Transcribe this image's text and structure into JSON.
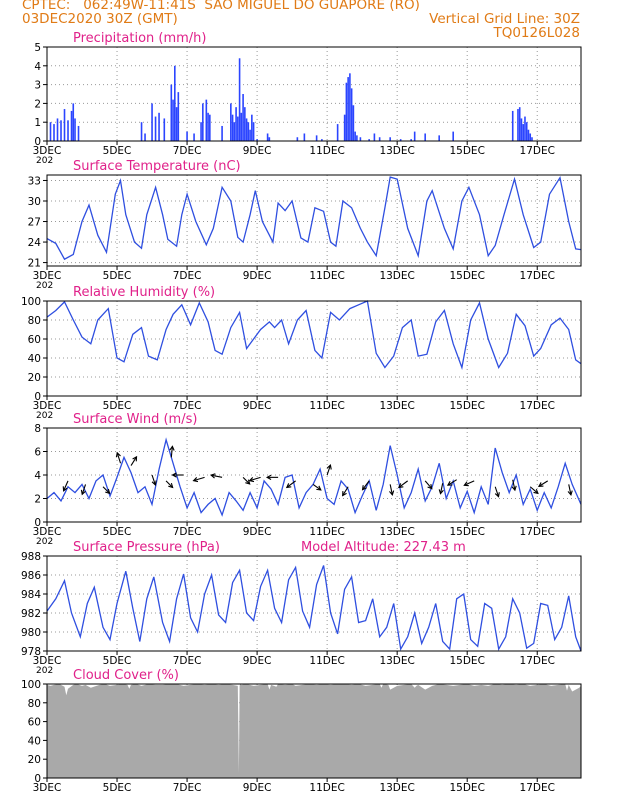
{
  "header": {
    "line1": "CPTEC:   062:49W-11:41S  SAO MIGUEL DO GUAPORE (RO)",
    "line2_left": "03DEC2020 30Z (GMT)",
    "line2_right": "Vertical Grid Line: 30Z",
    "line3_right": "TQ0126L028"
  },
  "colors": {
    "title": "#e0218a",
    "line": "#2f4fe0",
    "bars": "#2b45ff",
    "cloud": "#a9a9a9",
    "header": "#e07b16",
    "arrow": "#000000"
  },
  "x_axis": {
    "domain_days": [
      3.0,
      18.25
    ],
    "ticks": [
      {
        "d": 3,
        "label": "3DEC"
      },
      {
        "d": 5,
        "label": "5DEC"
      },
      {
        "d": 7,
        "label": "7DEC"
      },
      {
        "d": 9,
        "label": "9DEC"
      },
      {
        "d": 11,
        "label": "11DEC"
      },
      {
        "d": 13,
        "label": "13DEC"
      },
      {
        "d": 15,
        "label": "15DEC"
      },
      {
        "d": 17,
        "label": "17DEC"
      }
    ],
    "corner_label": "202"
  },
  "chart_data": [
    {
      "id": "precip",
      "type": "bar",
      "title": "Precipitation (mm/h)",
      "ylim": [
        0,
        5
      ],
      "yticks": [
        0,
        1,
        2,
        3,
        4,
        5
      ],
      "x": [
        3.1,
        3.2,
        3.3,
        3.4,
        3.5,
        3.6,
        3.7,
        3.75,
        3.8,
        3.9,
        5.7,
        5.8,
        6.0,
        6.1,
        6.2,
        6.35,
        6.55,
        6.6,
        6.65,
        6.7,
        6.75,
        7.0,
        7.2,
        7.4,
        7.45,
        7.55,
        7.6,
        7.65,
        8.0,
        8.25,
        8.3,
        8.35,
        8.4,
        8.45,
        8.5,
        8.55,
        8.6,
        8.65,
        8.7,
        8.75,
        8.8,
        8.85,
        8.9,
        9.0,
        9.3,
        9.35,
        10.15,
        10.35,
        10.7,
        10.85,
        11.3,
        11.5,
        11.55,
        11.6,
        11.65,
        11.7,
        11.75,
        11.8,
        11.85,
        11.95,
        12.2,
        12.35,
        12.5,
        12.8,
        13.1,
        13.4,
        13.5,
        13.8,
        14.2,
        14.6,
        16.3,
        16.45,
        16.5,
        16.55,
        16.6,
        16.65,
        16.7,
        16.75,
        16.8,
        16.85
      ],
      "values": [
        1.0,
        0.9,
        1.2,
        1.1,
        1.7,
        1.1,
        1.6,
        2.0,
        1.2,
        0.8,
        1.0,
        0.4,
        2.0,
        1.3,
        1.5,
        1.2,
        3.0,
        2.2,
        4.0,
        1.8,
        2.6,
        0.5,
        0.4,
        1.0,
        2.0,
        2.2,
        1.5,
        1.4,
        0.8,
        2.0,
        1.4,
        1.0,
        1.8,
        1.3,
        4.4,
        1.5,
        2.5,
        1.8,
        1.2,
        1.0,
        0.6,
        1.4,
        1.0,
        0.1,
        0.4,
        0.2,
        0.2,
        0.4,
        0.3,
        0.1,
        0.9,
        1.4,
        3.1,
        3.4,
        3.6,
        2.8,
        1.9,
        0.5,
        0.3,
        0.2,
        0.1,
        0.4,
        0.2,
        0.2,
        0.1,
        0.1,
        0.5,
        0.4,
        0.3,
        0.5,
        1.6,
        1.7,
        1.8,
        1.2,
        0.9,
        1.3,
        1.0,
        0.6,
        0.4,
        0.2
      ]
    },
    {
      "id": "temp",
      "type": "line",
      "title": "Surface Temperature (nC)",
      "ylim": [
        20.5,
        33.8
      ],
      "yticks": [
        21,
        24,
        27,
        30,
        33
      ],
      "x": [
        3.0,
        3.25,
        3.5,
        3.75,
        4.0,
        4.2,
        4.45,
        4.7,
        4.95,
        5.1,
        5.25,
        5.5,
        5.7,
        5.85,
        6.1,
        6.3,
        6.45,
        6.7,
        6.85,
        7.0,
        7.25,
        7.55,
        7.75,
        8.0,
        8.25,
        8.45,
        8.6,
        8.8,
        8.95,
        9.15,
        9.45,
        9.6,
        9.8,
        10.0,
        10.25,
        10.45,
        10.65,
        10.9,
        11.1,
        11.25,
        11.45,
        11.7,
        11.95,
        12.15,
        12.4,
        12.65,
        12.8,
        13.0,
        13.3,
        13.6,
        13.85,
        14.0,
        14.35,
        14.6,
        14.85,
        15.05,
        15.35,
        15.6,
        15.8,
        16.05,
        16.35,
        16.6,
        16.9,
        17.1,
        17.35,
        17.65,
        17.9,
        18.1,
        18.25
      ],
      "values": [
        24.5,
        23.8,
        21.5,
        22.2,
        27.0,
        29.4,
        25.0,
        22.5,
        31.0,
        33.0,
        28.0,
        24.0,
        23.1,
        28.0,
        32.0,
        28.0,
        24.4,
        23.4,
        28.0,
        31.0,
        27.0,
        23.6,
        26.0,
        32.0,
        30.0,
        24.7,
        24.0,
        28.0,
        31.5,
        27.0,
        24.0,
        29.7,
        28.6,
        30.0,
        24.6,
        24.0,
        29.0,
        28.5,
        24.0,
        23.4,
        30.0,
        29.0,
        26.0,
        24.0,
        22.0,
        29.0,
        33.5,
        33.2,
        26.0,
        22.0,
        30.0,
        31.5,
        26.0,
        23.0,
        30.0,
        32.0,
        28.0,
        22.0,
        23.5,
        28.0,
        33.2,
        28.0,
        23.2,
        24.0,
        31.0,
        33.4,
        27.0,
        23.0,
        22.9
      ]
    },
    {
      "id": "rh",
      "type": "line",
      "title": "Relative Humidity (%)",
      "ylim": [
        0,
        100
      ],
      "yticks": [
        0,
        20,
        40,
        60,
        80,
        100
      ],
      "x": [
        3.0,
        3.25,
        3.5,
        3.75,
        4.0,
        4.25,
        4.45,
        4.75,
        5.0,
        5.2,
        5.45,
        5.7,
        5.9,
        6.15,
        6.4,
        6.6,
        6.85,
        7.1,
        7.35,
        7.6,
        7.8,
        8.0,
        8.25,
        8.5,
        8.7,
        8.9,
        9.1,
        9.35,
        9.5,
        9.7,
        9.9,
        10.15,
        10.4,
        10.65,
        10.85,
        11.1,
        11.35,
        11.65,
        11.9,
        12.15,
        12.4,
        12.65,
        12.9,
        13.15,
        13.4,
        13.6,
        13.85,
        14.1,
        14.35,
        14.6,
        14.85,
        15.1,
        15.35,
        15.6,
        15.9,
        16.15,
        16.4,
        16.65,
        16.9,
        17.1,
        17.4,
        17.65,
        17.9,
        18.1,
        18.25
      ],
      "values": [
        83,
        90,
        99,
        80,
        62,
        55,
        80,
        92,
        40,
        36,
        65,
        72,
        42,
        38,
        70,
        86,
        96,
        75,
        98,
        78,
        48,
        44,
        72,
        88,
        50,
        60,
        70,
        78,
        72,
        80,
        55,
        80,
        90,
        48,
        40,
        88,
        80,
        92,
        96,
        100,
        45,
        30,
        42,
        72,
        80,
        42,
        44,
        78,
        90,
        55,
        30,
        80,
        98,
        60,
        30,
        45,
        86,
        74,
        42,
        50,
        75,
        82,
        70,
        38,
        34
      ]
    },
    {
      "id": "wind",
      "type": "line",
      "title": "Surface Wind (m/s)",
      "ylim": [
        0,
        8
      ],
      "yticks": [
        0,
        2,
        4,
        6,
        8
      ],
      "x": [
        3.0,
        3.2,
        3.4,
        3.6,
        3.8,
        4.0,
        4.2,
        4.4,
        4.6,
        4.8,
        5.0,
        5.2,
        5.4,
        5.6,
        5.8,
        6.0,
        6.2,
        6.4,
        6.6,
        6.8,
        7.0,
        7.2,
        7.4,
        7.6,
        7.8,
        8.0,
        8.2,
        8.4,
        8.6,
        8.8,
        9.0,
        9.2,
        9.4,
        9.6,
        9.8,
        10.0,
        10.2,
        10.4,
        10.6,
        10.8,
        11.0,
        11.2,
        11.4,
        11.6,
        11.8,
        12.0,
        12.2,
        12.4,
        12.6,
        12.8,
        13.0,
        13.2,
        13.4,
        13.6,
        13.8,
        14.0,
        14.2,
        14.4,
        14.6,
        14.8,
        15.0,
        15.2,
        15.4,
        15.6,
        15.8,
        16.0,
        16.2,
        16.4,
        16.6,
        16.8,
        17.0,
        17.2,
        17.4,
        17.6,
        17.8,
        18.0,
        18.25
      ],
      "values": [
        2.0,
        2.5,
        1.8,
        3.0,
        2.5,
        3.2,
        2.0,
        3.5,
        4.0,
        2.2,
        3.8,
        5.5,
        4.2,
        2.5,
        3.0,
        1.5,
        4.5,
        7.0,
        5.0,
        3.0,
        1.2,
        2.5,
        0.8,
        1.5,
        2.0,
        0.6,
        2.5,
        1.8,
        1.0,
        2.5,
        1.2,
        3.5,
        2.8,
        1.5,
        3.8,
        4.0,
        1.2,
        2.5,
        3.2,
        4.5,
        2.0,
        1.5,
        3.5,
        2.8,
        0.8,
        2.2,
        3.5,
        1.0,
        3.2,
        6.5,
        4.0,
        1.2,
        2.5,
        4.5,
        1.8,
        3.0,
        5.0,
        2.0,
        3.5,
        1.2,
        2.6,
        0.8,
        3.0,
        1.5,
        6.3,
        4.2,
        2.5,
        4.0,
        1.5,
        2.8,
        1.0,
        2.5,
        1.2,
        3.0,
        5.0,
        3.2,
        1.5
      ],
      "arrows": [
        {
          "x": 3.6,
          "s": 3.5,
          "dx": -0.4,
          "dy": 0.9
        },
        {
          "x": 4.1,
          "s": 3.2,
          "dx": -0.3,
          "dy": 0.9
        },
        {
          "x": 4.6,
          "s": 3.0,
          "dx": 0.6,
          "dy": 0.6
        },
        {
          "x": 5.1,
          "s": 5.0,
          "dx": -0.3,
          "dy": -0.95
        },
        {
          "x": 5.4,
          "s": 4.8,
          "dx": 0.5,
          "dy": -0.8
        },
        {
          "x": 6.0,
          "s": 4.0,
          "dx": 0.3,
          "dy": 0.9
        },
        {
          "x": 6.4,
          "s": 3.5,
          "dx": 0.6,
          "dy": 0.6
        },
        {
          "x": 6.55,
          "s": 5.5,
          "dx": 0.1,
          "dy": -1.0
        },
        {
          "x": 6.9,
          "s": 4.0,
          "dx": -1.0,
          "dy": 0.0
        },
        {
          "x": 7.5,
          "s": 3.8,
          "dx": -1.0,
          "dy": 0.3
        },
        {
          "x": 8.0,
          "s": 3.8,
          "dx": -1.0,
          "dy": -0.2
        },
        {
          "x": 8.6,
          "s": 3.8,
          "dx": 0.6,
          "dy": 0.6
        },
        {
          "x": 9.1,
          "s": 3.8,
          "dx": -1.0,
          "dy": 0.3
        },
        {
          "x": 9.6,
          "s": 3.8,
          "dx": -1.0,
          "dy": 0.0
        },
        {
          "x": 10.1,
          "s": 3.5,
          "dx": -0.8,
          "dy": 0.6
        },
        {
          "x": 10.6,
          "s": 3.2,
          "dx": 0.7,
          "dy": 0.5
        },
        {
          "x": 11.0,
          "s": 4.0,
          "dx": 0.3,
          "dy": -0.9
        },
        {
          "x": 11.6,
          "s": 3.0,
          "dx": -0.5,
          "dy": 0.8
        },
        {
          "x": 12.2,
          "s": 3.5,
          "dx": -0.6,
          "dy": 0.8
        },
        {
          "x": 12.8,
          "s": 3.2,
          "dx": 0.2,
          "dy": 0.95
        },
        {
          "x": 13.3,
          "s": 3.5,
          "dx": -0.8,
          "dy": 0.6
        },
        {
          "x": 13.8,
          "s": 3.5,
          "dx": 0.6,
          "dy": 0.7
        },
        {
          "x": 14.3,
          "s": 3.3,
          "dx": -0.2,
          "dy": 0.95
        },
        {
          "x": 14.7,
          "s": 3.6,
          "dx": -0.8,
          "dy": 0.5
        },
        {
          "x": 15.2,
          "s": 3.5,
          "dx": -0.9,
          "dy": 0.4
        },
        {
          "x": 15.8,
          "s": 3.0,
          "dx": 0.3,
          "dy": 0.9
        },
        {
          "x": 16.3,
          "s": 3.6,
          "dx": 0.2,
          "dy": 0.95
        },
        {
          "x": 16.8,
          "s": 3.0,
          "dx": 0.7,
          "dy": 0.6
        },
        {
          "x": 17.3,
          "s": 3.5,
          "dx": -0.8,
          "dy": 0.5
        },
        {
          "x": 17.9,
          "s": 3.2,
          "dx": 0.2,
          "dy": 0.95
        }
      ]
    },
    {
      "id": "pres",
      "type": "line",
      "title": "Surface Pressure (hPa)",
      "subtitle": "Model Altitude: 227.43 m",
      "ylim": [
        978,
        988
      ],
      "yticks": [
        978,
        980,
        982,
        984,
        986,
        988
      ],
      "x": [
        3.0,
        3.25,
        3.5,
        3.7,
        3.95,
        4.15,
        4.35,
        4.6,
        4.8,
        5.0,
        5.25,
        5.45,
        5.65,
        5.85,
        6.05,
        6.3,
        6.5,
        6.7,
        6.9,
        7.1,
        7.3,
        7.5,
        7.7,
        7.9,
        8.1,
        8.3,
        8.5,
        8.7,
        8.9,
        9.1,
        9.3,
        9.5,
        9.7,
        9.9,
        10.1,
        10.3,
        10.5,
        10.7,
        10.9,
        11.1,
        11.3,
        11.5,
        11.7,
        11.9,
        12.1,
        12.3,
        12.5,
        12.7,
        12.9,
        13.1,
        13.3,
        13.5,
        13.7,
        13.9,
        14.1,
        14.3,
        14.5,
        14.7,
        14.9,
        15.1,
        15.3,
        15.5,
        15.7,
        15.9,
        16.1,
        16.3,
        16.5,
        16.7,
        16.9,
        17.1,
        17.3,
        17.5,
        17.7,
        17.9,
        18.1,
        18.25
      ],
      "values": [
        982.2,
        983.5,
        985.4,
        982.0,
        979.5,
        983.0,
        984.7,
        980.5,
        979.2,
        983.0,
        986.4,
        982.5,
        979.0,
        983.5,
        985.8,
        981.0,
        979.0,
        983.5,
        986.1,
        981.5,
        980.0,
        984.0,
        986.0,
        981.8,
        981.0,
        985.2,
        986.5,
        982.0,
        981.2,
        984.8,
        986.5,
        982.5,
        981.0,
        985.5,
        986.8,
        982.2,
        980.5,
        985.0,
        987.0,
        982.0,
        979.8,
        984.5,
        985.8,
        981.0,
        981.2,
        983.5,
        979.5,
        980.5,
        983.0,
        978.2,
        979.5,
        982.0,
        978.8,
        980.5,
        983.0,
        979.0,
        978.2,
        983.5,
        984.0,
        979.2,
        978.5,
        983.0,
        982.5,
        978.2,
        979.5,
        983.5,
        982.0,
        978.3,
        978.8,
        983.0,
        982.8,
        979.2,
        980.5,
        983.8,
        979.5,
        978.0
      ]
    },
    {
      "id": "cloud",
      "type": "area",
      "title": "Cloud Cover (%)",
      "ylim": [
        0,
        100
      ],
      "yticks": [
        0,
        20,
        40,
        60,
        80,
        100
      ],
      "x": [
        3.0,
        3.1,
        3.2,
        3.35,
        3.5,
        3.55,
        3.6,
        3.75,
        3.85,
        4.0,
        4.1,
        4.25,
        4.5,
        4.65,
        4.8,
        5.0,
        5.15,
        5.3,
        5.35,
        5.4,
        5.55,
        5.7,
        5.9,
        6.1,
        6.3,
        6.5,
        6.7,
        6.9,
        7.1,
        7.3,
        7.5,
        7.7,
        7.9,
        8.1,
        8.3,
        8.45,
        8.48,
        8.5,
        8.52,
        8.55,
        8.7,
        8.9,
        9.1,
        9.3,
        9.35,
        9.4,
        9.55,
        9.6,
        9.8,
        10.0,
        10.1,
        10.3,
        10.5,
        10.7,
        10.9,
        11.1,
        11.3,
        11.5,
        11.7,
        11.9,
        12.1,
        12.3,
        12.5,
        12.55,
        12.6,
        12.75,
        12.8,
        13.0,
        13.2,
        13.4,
        13.5,
        13.55,
        13.6,
        13.8,
        14.0,
        14.2,
        14.4,
        14.6,
        14.8,
        15.0,
        15.2,
        15.4,
        15.6,
        15.8,
        16.0,
        16.2,
        16.4,
        16.6,
        16.8,
        17.0,
        17.2,
        17.4,
        17.6,
        17.8,
        17.85,
        17.9,
        18.0,
        18.2,
        18.25
      ],
      "values": [
        99,
        98,
        99,
        100,
        97,
        88,
        95,
        99,
        100,
        98,
        99,
        96,
        99,
        100,
        98,
        99,
        100,
        99,
        95,
        99,
        100,
        98,
        100,
        99,
        99,
        100,
        100,
        98,
        99,
        100,
        99,
        100,
        99,
        100,
        99,
        98,
        5,
        98,
        100,
        99,
        100,
        98,
        99,
        100,
        94,
        99,
        97,
        100,
        99,
        100,
        98,
        99,
        100,
        99,
        100,
        99,
        100,
        100,
        99,
        100,
        98,
        99,
        100,
        96,
        100,
        99,
        94,
        98,
        99,
        100,
        96,
        98,
        99,
        94,
        98,
        100,
        99,
        98,
        99,
        100,
        98,
        99,
        98,
        100,
        99,
        100,
        99,
        100,
        98,
        99,
        100,
        98,
        99,
        100,
        93,
        99,
        92,
        96,
        98
      ]
    }
  ]
}
